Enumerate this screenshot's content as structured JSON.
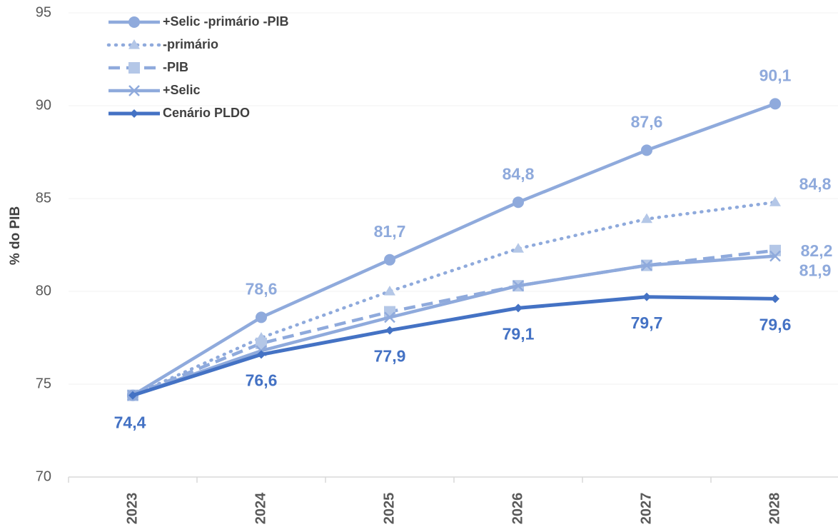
{
  "chart_data": {
    "type": "line",
    "y_label": "% do PIB",
    "categories": [
      "2023",
      "2024",
      "2025",
      "2026",
      "2027",
      "2028"
    ],
    "ylim": [
      70,
      95
    ],
    "yticks": [
      70,
      75,
      80,
      85,
      90,
      95
    ],
    "grid": true,
    "legend": "top-left",
    "series": [
      {
        "name": "+Selic -primário -PIB",
        "color": "#8faadc",
        "marker": "circle",
        "line_style": "solid",
        "values": [
          74.4,
          78.6,
          81.7,
          84.8,
          87.6,
          90.1
        ],
        "value_labels": [
          null,
          "78,6",
          "81,7",
          "84,8",
          "87,6",
          "90,1"
        ]
      },
      {
        "name": "-primário",
        "color": "#8faadc",
        "marker": "triangle",
        "line_style": "dotted",
        "values": [
          74.4,
          77.5,
          80.0,
          82.3,
          83.9,
          84.8
        ],
        "value_labels": [
          null,
          null,
          null,
          null,
          null,
          "84,8"
        ]
      },
      {
        "name": "-PIB",
        "color": "#8faadc",
        "marker": "square",
        "line_style": "dashed",
        "values": [
          74.4,
          77.2,
          78.9,
          80.3,
          81.4,
          82.2
        ],
        "value_labels": [
          null,
          null,
          null,
          null,
          null,
          "82,2"
        ]
      },
      {
        "name": "+Selic",
        "color": "#8faadc",
        "marker": "x",
        "line_style": "solid",
        "values": [
          74.4,
          76.8,
          78.6,
          80.3,
          81.4,
          81.9
        ],
        "value_labels": [
          null,
          null,
          null,
          null,
          null,
          "81,9"
        ]
      },
      {
        "name": "Cenário PLDO",
        "color": "#4472c4",
        "marker": "diamond",
        "line_style": "solid",
        "values": [
          74.4,
          76.6,
          77.9,
          79.1,
          79.7,
          79.6
        ],
        "value_labels": [
          "74,4",
          "76,6",
          "77,9",
          "79,1",
          "79,7",
          "79,6"
        ]
      }
    ]
  }
}
